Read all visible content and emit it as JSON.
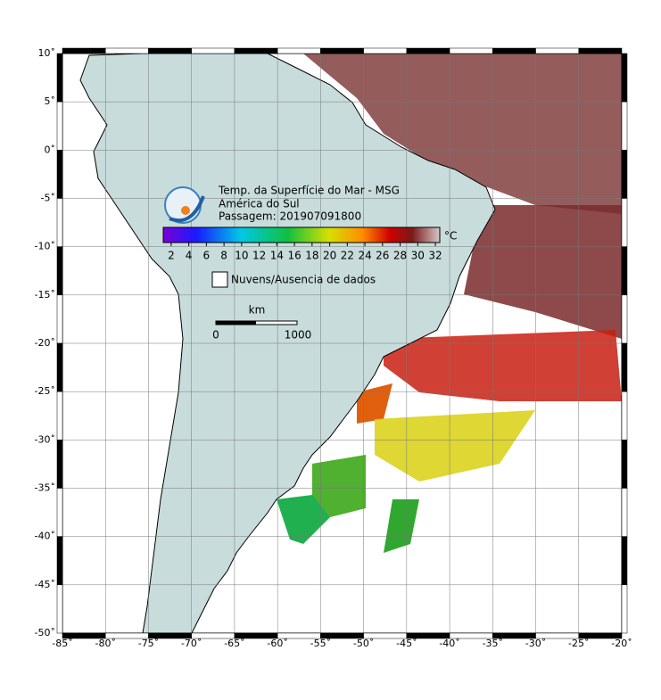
{
  "header": {
    "title": "Temp. da Superfície do Mar - MSG",
    "region": "América do Sul",
    "pass": "Passagem: 201907091800"
  },
  "colorbar": {
    "range": [
      1.1,
      32.5
    ],
    "ticks": [
      2,
      4,
      6,
      8,
      10,
      12,
      14,
      16,
      18,
      20,
      22,
      24,
      26,
      28,
      30,
      32
    ],
    "unit": "°C"
  },
  "legend": "Nuvens/Ausencia de dados",
  "scale": {
    "unit": "km",
    "labels": [
      "0",
      "1000"
    ]
  },
  "map": {
    "lon_range": [
      -85,
      -20
    ],
    "lat_range": [
      -50,
      10
    ],
    "lon_ticks": [
      {
        "value": -85,
        "label": "-85˚"
      },
      {
        "value": -80,
        "label": "-80˚"
      },
      {
        "value": -75,
        "label": "-75˚"
      },
      {
        "value": -70,
        "label": "-70˚"
      },
      {
        "value": -65,
        "label": "-65˚"
      },
      {
        "value": -60,
        "label": "-60˚"
      },
      {
        "value": -55,
        "label": "-55˚"
      },
      {
        "value": -50,
        "label": "-50˚"
      },
      {
        "value": -45,
        "label": "-45˚"
      },
      {
        "value": -40,
        "label": "-40˚"
      },
      {
        "value": -35,
        "label": "-35˚"
      },
      {
        "value": -30,
        "label": "-30˚"
      },
      {
        "value": -25,
        "label": "-25˚"
      },
      {
        "value": -20,
        "label": "-20˚"
      }
    ],
    "lat_ticks": [
      {
        "value": 10,
        "label": "10˚"
      },
      {
        "value": 5,
        "label": "5˚"
      },
      {
        "value": 0,
        "label": "0˚"
      },
      {
        "value": -5,
        "label": "-5˚"
      },
      {
        "value": -10,
        "label": "-10˚"
      },
      {
        "value": -15,
        "label": "-15˚"
      },
      {
        "value": -20,
        "label": "-20˚"
      },
      {
        "value": -25,
        "label": "-25˚"
      },
      {
        "value": -30,
        "label": "-30˚"
      },
      {
        "value": -35,
        "label": "-35˚"
      },
      {
        "value": -40,
        "label": "-40˚"
      },
      {
        "value": -45,
        "label": "-45˚"
      },
      {
        "value": -50,
        "label": "-50˚"
      }
    ]
  }
}
